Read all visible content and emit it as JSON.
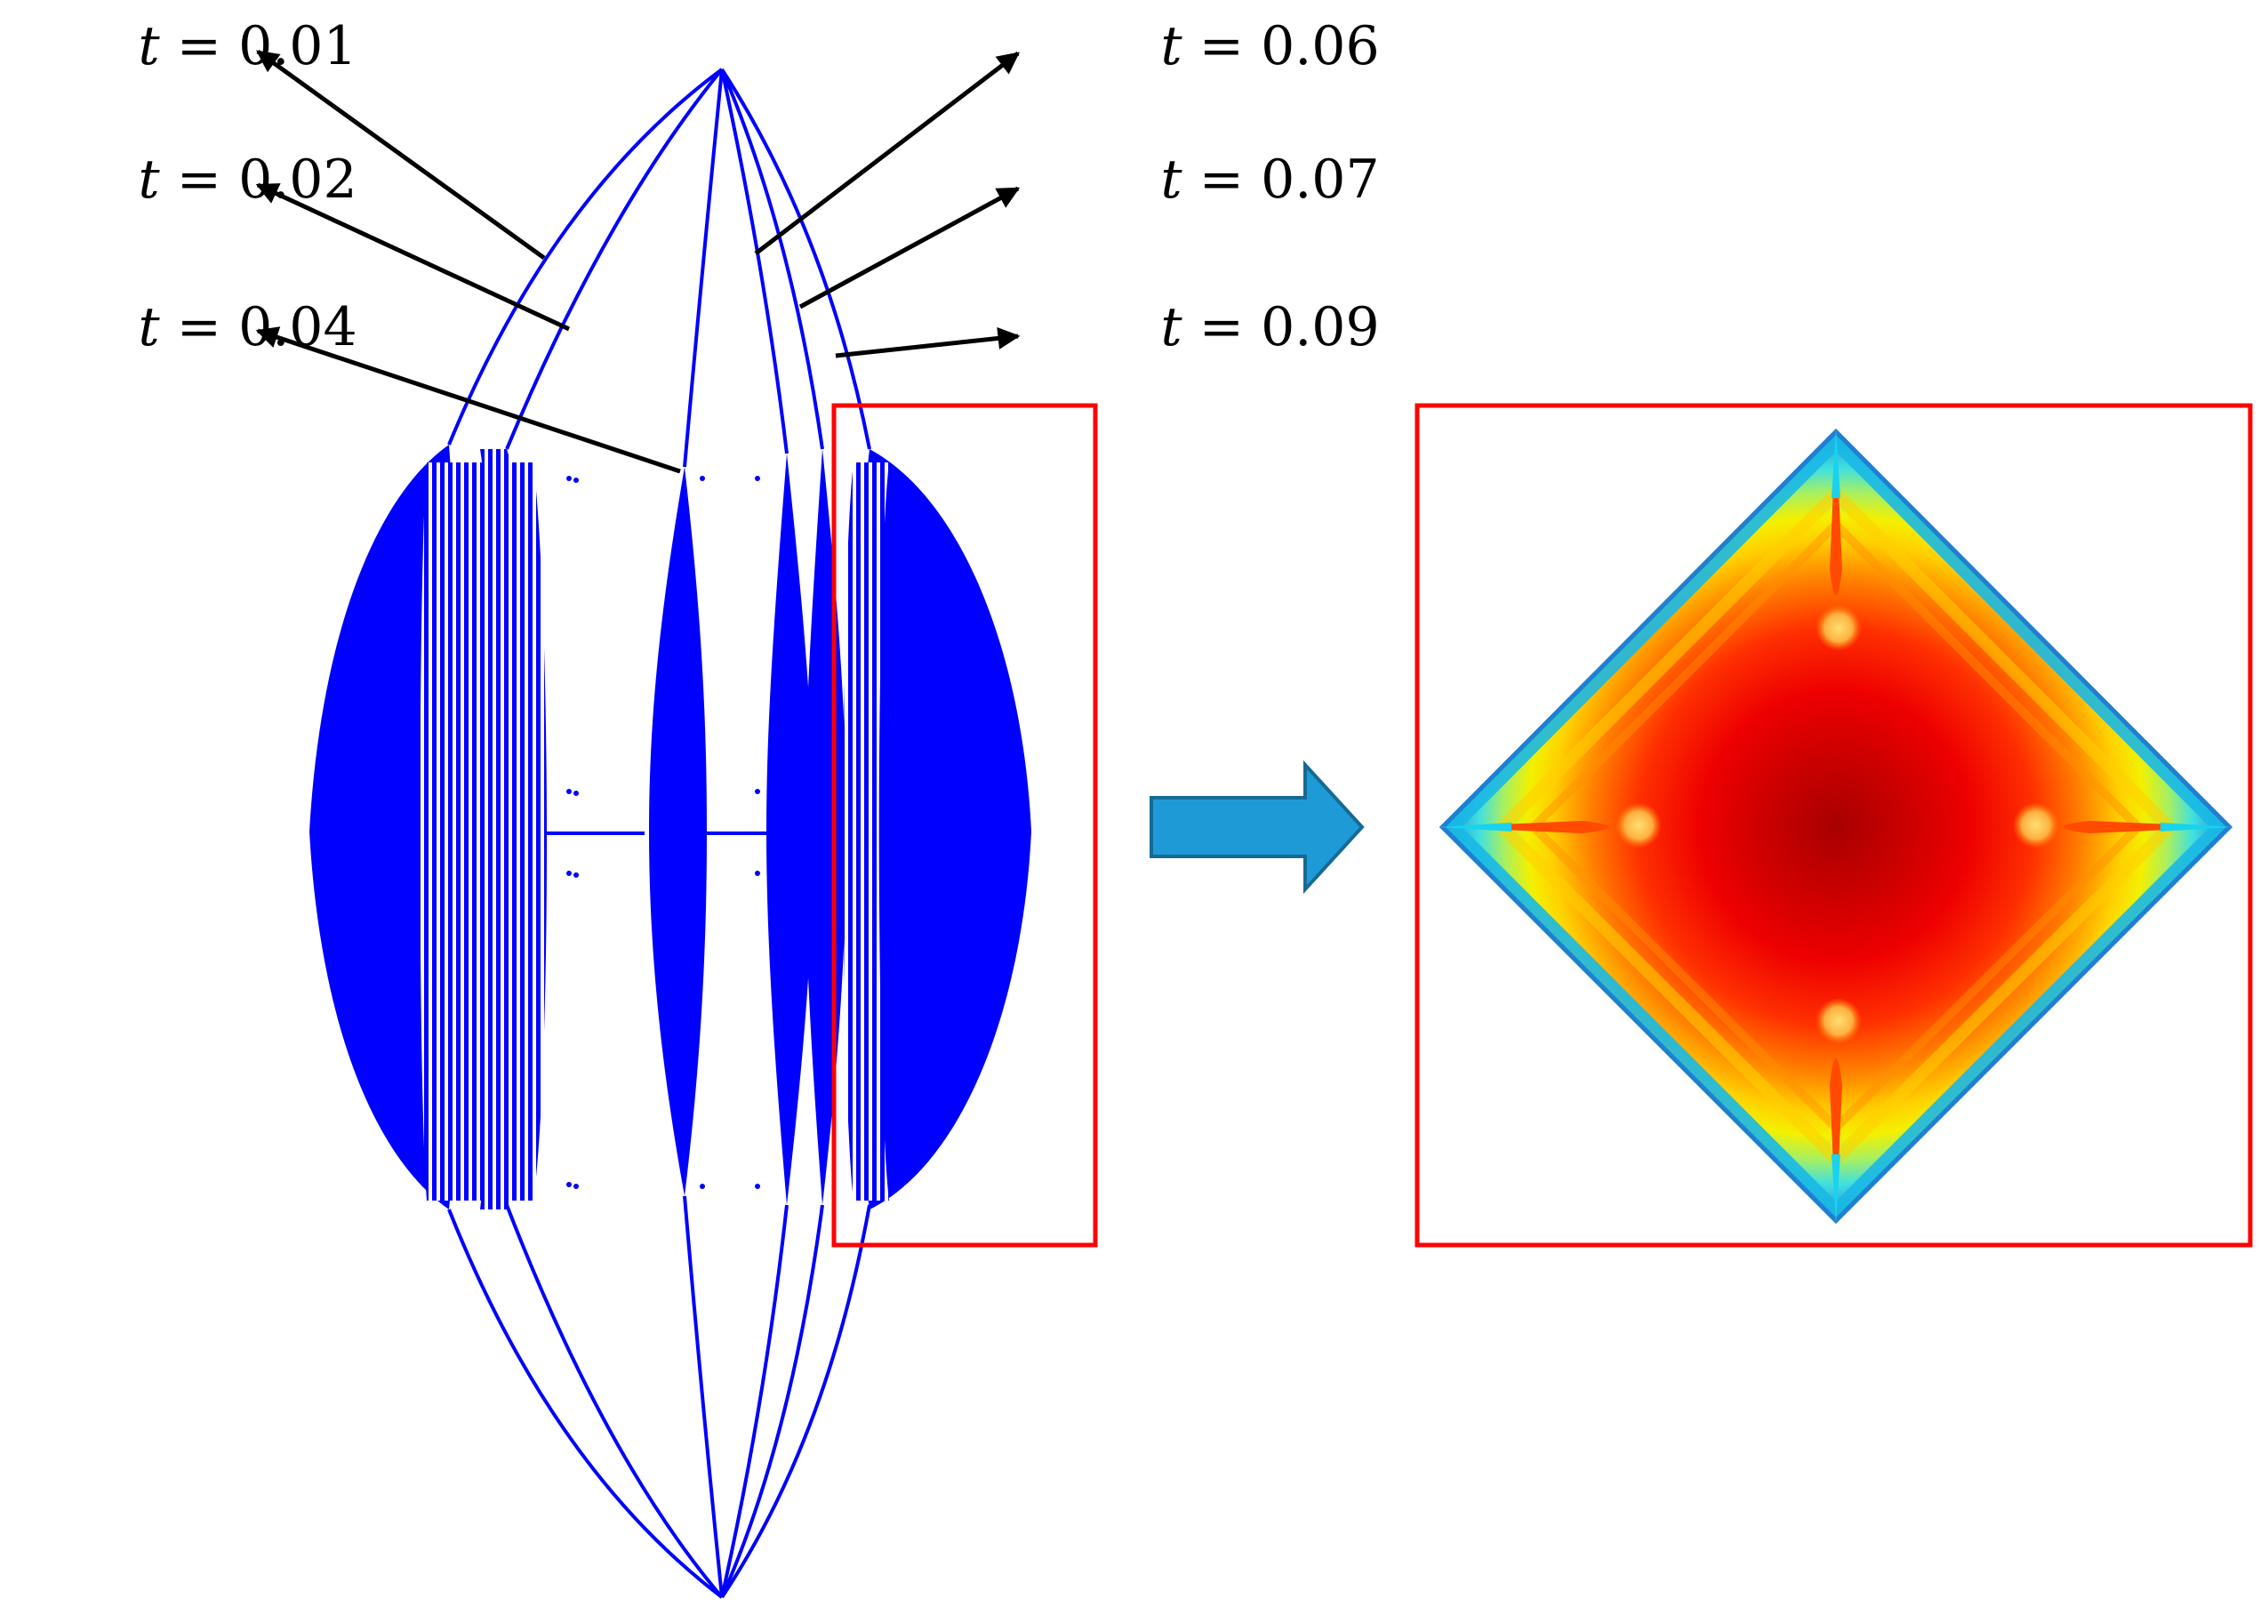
{
  "labels": {
    "left": [
      {
        "var": "t",
        "op": " = ",
        "value": "0.01"
      },
      {
        "var": "t",
        "op": " = ",
        "value": "0.02"
      },
      {
        "var": "t",
        "op": " = ",
        "value": "0.04"
      }
    ],
    "right": [
      {
        "var": "t",
        "op": " = ",
        "value": "0.06"
      },
      {
        "var": "t",
        "op": " = ",
        "value": "0.07"
      },
      {
        "var": "t",
        "op": " = ",
        "value": "0.09"
      }
    ]
  },
  "colors": {
    "mesh": "#0000ff",
    "highlight_box": "#ff0000",
    "arrow_fill": "#1e9bd7",
    "arrow_stroke": "#156a94",
    "pointer": "#000000"
  },
  "colormap": [
    "#1f7fd0",
    "#19d2f0",
    "#64e6c8",
    "#c8f53c",
    "#ffee00",
    "#ffa000",
    "#ff4a00",
    "#ee0000",
    "#a80000"
  ],
  "icons": {
    "transition_arrow": "right-block-arrow-icon"
  }
}
